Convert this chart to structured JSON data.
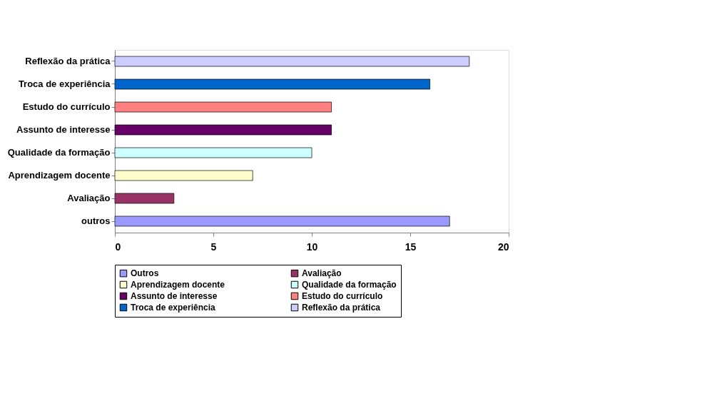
{
  "chart_data": {
    "type": "bar",
    "orientation": "horizontal",
    "categories": [
      "Reflexão da prática",
      "Troca de experiência",
      "Estudo do currículo",
      "Assunto de interesse",
      "Qualidade da formação",
      "Aprendizagem docente",
      "Avaliação",
      "outros"
    ],
    "series": [
      {
        "name": "Outros",
        "color": "#9999ff",
        "values": [
          null,
          null,
          null,
          null,
          null,
          null,
          null,
          17
        ]
      },
      {
        "name": "Avaliação",
        "color": "#993366",
        "values": [
          null,
          null,
          null,
          null,
          null,
          null,
          3,
          null
        ]
      },
      {
        "name": "Aprendizagem docente",
        "color": "#ffffcc",
        "values": [
          null,
          null,
          null,
          null,
          null,
          7,
          null,
          null
        ]
      },
      {
        "name": "Qualidade da formação",
        "color": "#ccffff",
        "values": [
          null,
          null,
          null,
          null,
          10,
          null,
          null,
          null
        ]
      },
      {
        "name": "Assunto de interesse",
        "color": "#660066",
        "values": [
          null,
          null,
          null,
          11,
          null,
          null,
          null,
          null
        ]
      },
      {
        "name": "Estudo do currículo",
        "color": "#ff8080",
        "values": [
          null,
          null,
          11,
          null,
          null,
          null,
          null,
          null
        ]
      },
      {
        "name": "Troca de experiência",
        "color": "#0066cc",
        "values": [
          null,
          16,
          null,
          null,
          null,
          null,
          null,
          null
        ]
      },
      {
        "name": "Reflexão da prática",
        "color": "#ccccff",
        "values": [
          18,
          null,
          null,
          null,
          null,
          null,
          null,
          null
        ]
      }
    ],
    "xlim": [
      0,
      20
    ],
    "xticks": [
      0,
      5,
      10,
      15,
      20
    ],
    "grid": false,
    "legend": "bottom"
  }
}
